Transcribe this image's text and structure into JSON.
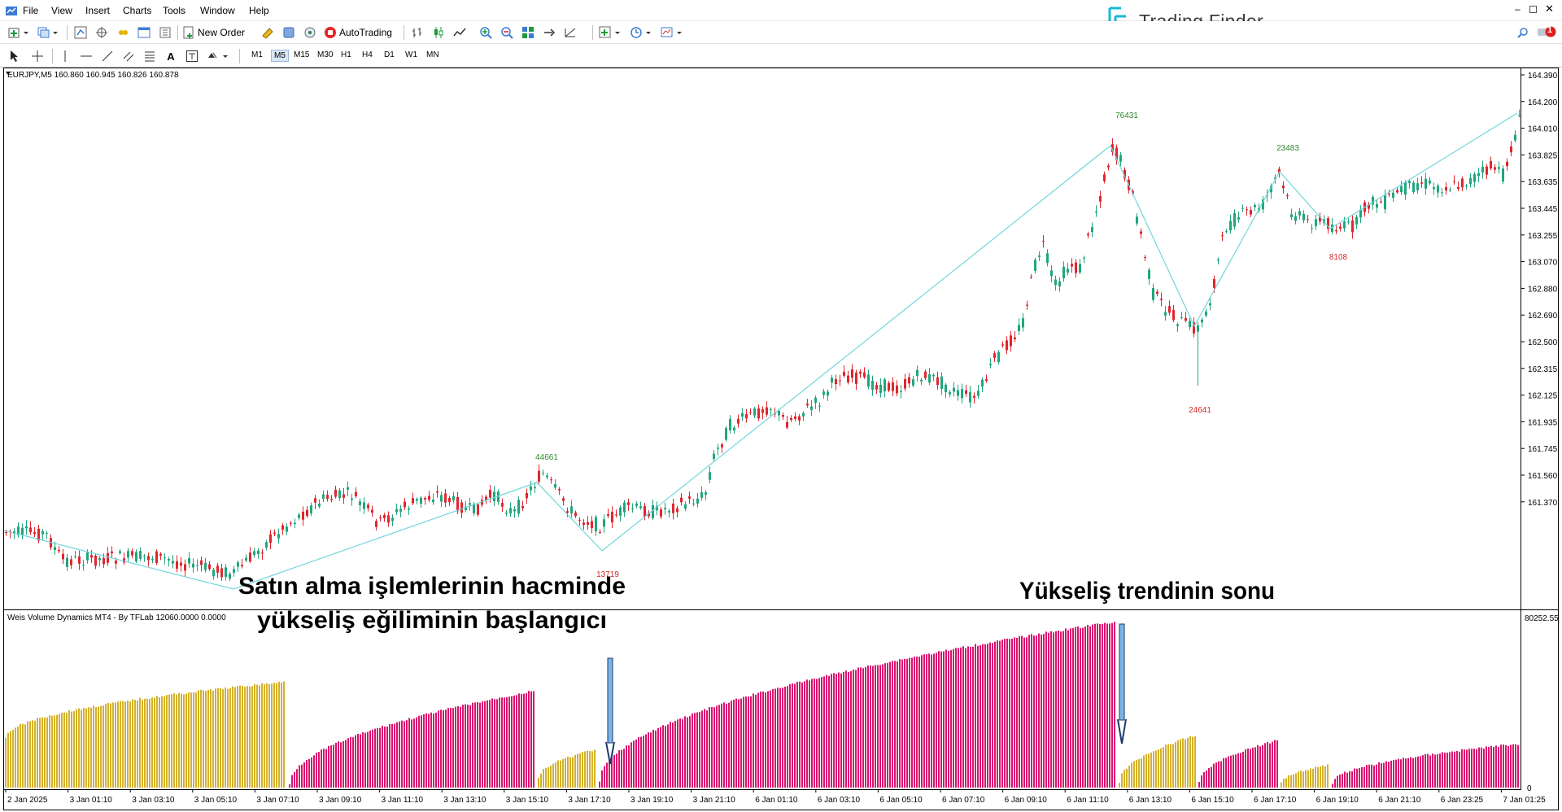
{
  "menu": [
    "File",
    "View",
    "Insert",
    "Charts",
    "Tools",
    "Window",
    "Help"
  ],
  "toolbar": {
    "new_order_label": "New Order",
    "autotrading_label": "AutoTrading",
    "notification_count": "1"
  },
  "timeframes": [
    "M1",
    "M5",
    "M15",
    "M30",
    "H1",
    "H4",
    "D1",
    "W1",
    "MN"
  ],
  "active_timeframe": "M5",
  "brand": {
    "name": "Trading Finder",
    "color": "#17b8d4"
  },
  "chart": {
    "header": "EURJPY,M5  160.860 160.945 160.826 160.878",
    "price_ticks": [
      "164.390",
      "164.200",
      "164.010",
      "163.825",
      "163.635",
      "163.445",
      "163.255",
      "163.070",
      "162.880",
      "162.690",
      "162.500",
      "162.315",
      "162.125",
      "161.935",
      "161.745",
      "161.560",
      "161.370"
    ],
    "swing_labels": [
      {
        "text": "44661",
        "kind": "high"
      },
      {
        "text": "13719",
        "kind": "low"
      },
      {
        "text": "76431",
        "kind": "high"
      },
      {
        "text": "24641",
        "kind": "low"
      },
      {
        "text": "23483",
        "kind": "high"
      },
      {
        "text": "8108",
        "kind": "low"
      }
    ],
    "bull_color": "#1fa67e",
    "bear_color": "#e0262e",
    "zigzag_color": "#71d6db"
  },
  "indicator": {
    "header": "Weis Volume Dynamics MT4 - By TFLab 12060.0000 0.0000",
    "scale_top": "80252.55",
    "scale_bottom": "0",
    "up_color": "#d4b12a",
    "down_color": "#d9126f"
  },
  "time_axis": [
    "2 Jan 2025",
    "3 Jan 01:10",
    "3 Jan 03:10",
    "3 Jan 05:10",
    "3 Jan 07:10",
    "3 Jan 09:10",
    "3 Jan 11:10",
    "3 Jan 13:10",
    "3 Jan 15:10",
    "3 Jan 17:10",
    "3 Jan 19:10",
    "3 Jan 21:10",
    "6 Jan 01:10",
    "6 Jan 03:10",
    "6 Jan 05:10",
    "6 Jan 07:10",
    "6 Jan 09:10",
    "6 Jan 11:10",
    "6 Jan 13:10",
    "6 Jan 15:10",
    "6 Jan 17:10",
    "6 Jan 19:10",
    "6 Jan 21:10",
    "6 Jan 23:25",
    "7 Jan 01:25"
  ],
  "annotations": {
    "left_line1": "Satın alma işlemlerinin hacminde",
    "left_line2": "yükseliş eğiliminin başlangıcı",
    "right": "Yükseliş trendinin sonu"
  }
}
